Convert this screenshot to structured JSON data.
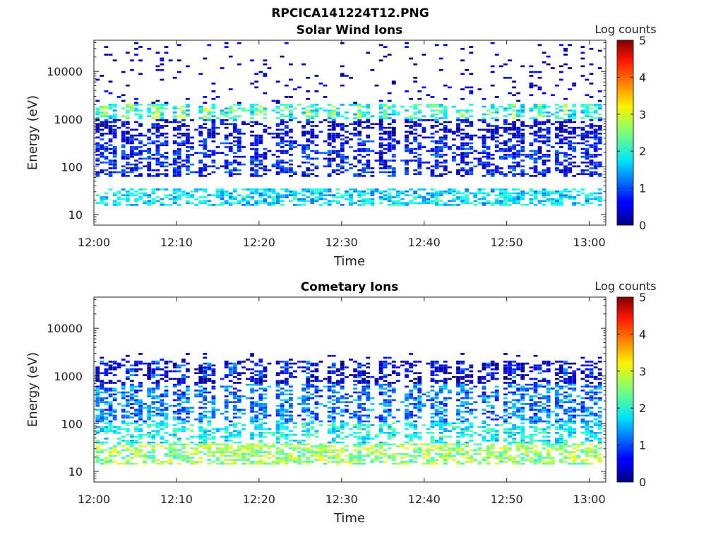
{
  "figure": {
    "title": "RPCICA141224T12.PNG"
  },
  "chart_data": [
    {
      "type": "heatmap",
      "title": "Solar Wind Ions",
      "xlabel": "Time",
      "ylabel": "Energy (eV)",
      "x_ticks": [
        "12:00",
        "12:10",
        "12:20",
        "12:30",
        "12:40",
        "12:50",
        "13:00"
      ],
      "xlim_minutes": [
        0,
        62
      ],
      "y_scale": "log",
      "ylim": [
        6,
        45000
      ],
      "y_ticks": [
        {
          "value": 10,
          "label": "10"
        },
        {
          "value": 100,
          "label": "100"
        },
        {
          "value": 1000,
          "label": "1000"
        },
        {
          "value": 10000,
          "label": "10000"
        }
      ],
      "colorbar": {
        "label": "Log counts",
        "range": [
          0,
          5
        ],
        "ticks": [
          "0",
          "1",
          "2",
          "3",
          "4",
          "5"
        ],
        "colormap": "jet"
      },
      "cycle_minutes": 3.1,
      "bands": [
        {
          "e_min": 15,
          "e_max": 35,
          "level": 1.7
        },
        {
          "e_min": 60,
          "e_max": 400,
          "level": 0.7
        },
        {
          "e_min": 400,
          "e_max": 1000,
          "level": 0.4
        },
        {
          "e_min": 1000,
          "e_max": 2000,
          "level": 1.9
        },
        {
          "e_min": 2000,
          "e_max": 40000,
          "level": 0.2
        }
      ]
    },
    {
      "type": "heatmap",
      "title": "Cometary Ions",
      "xlabel": "Time",
      "ylabel": "Energy (eV)",
      "x_ticks": [
        "12:00",
        "12:10",
        "12:20",
        "12:30",
        "12:40",
        "12:50",
        "13:00"
      ],
      "xlim_minutes": [
        0,
        62
      ],
      "y_scale": "log",
      "ylim": [
        6,
        45000
      ],
      "y_ticks": [
        {
          "value": 10,
          "label": "10"
        },
        {
          "value": 100,
          "label": "100"
        },
        {
          "value": 1000,
          "label": "1000"
        },
        {
          "value": 10000,
          "label": "10000"
        }
      ],
      "colorbar": {
        "label": "Log counts",
        "range": [
          0,
          5
        ],
        "ticks": [
          "0",
          "1",
          "2",
          "3",
          "4",
          "5"
        ],
        "colormap": "jet"
      },
      "cycle_minutes": 3.1,
      "bands": [
        {
          "e_min": 14,
          "e_max": 40,
          "level": 2.6
        },
        {
          "e_min": 40,
          "e_max": 110,
          "level": 1.9
        },
        {
          "e_min": 110,
          "e_max": 700,
          "level": 1.2
        },
        {
          "e_min": 700,
          "e_max": 3000,
          "level": 0.3
        }
      ]
    }
  ]
}
